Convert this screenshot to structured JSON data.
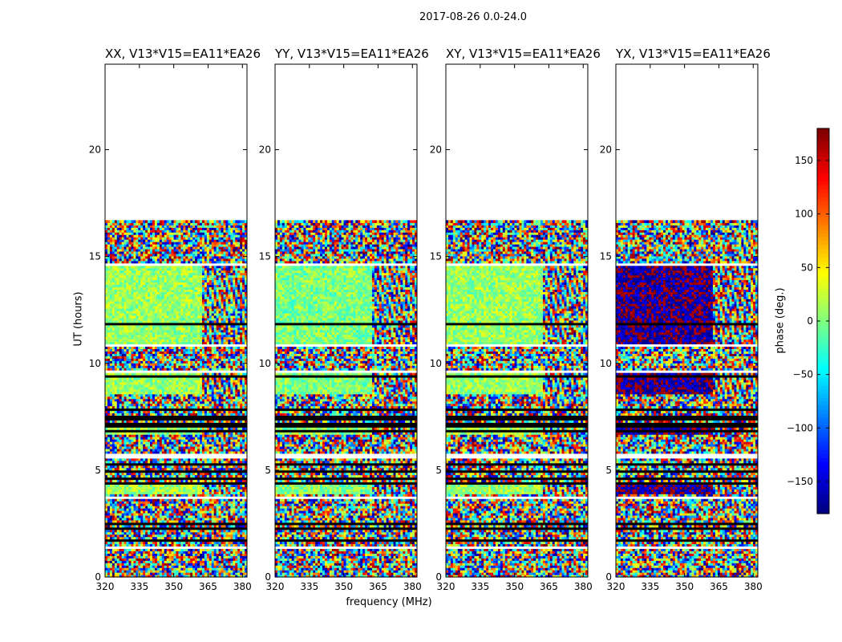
{
  "figure": {
    "suptitle": "2017-08-26 0.0-24.0",
    "xlabel": "frequency (MHz)",
    "ylabel": "UT (hours)",
    "colorbar_label": "phase (deg.)",
    "colorbar_ticks": [
      "150",
      "100",
      "50",
      "0",
      "−50",
      "−100",
      "−150"
    ]
  },
  "chart_data": {
    "type": "heatmap",
    "title": "2017-08-26 0.0-24.0",
    "xlabel": "frequency (MHz)",
    "ylabel": "UT (hours)",
    "xlim": [
      320,
      382
    ],
    "ylim": [
      0,
      24
    ],
    "xticks": [
      320,
      335,
      350,
      365,
      380
    ],
    "yticks": [
      0,
      5,
      10,
      15,
      20
    ],
    "colorbar": {
      "label": "phase (deg.)",
      "range": [
        -180,
        180
      ],
      "ticks": [
        -150,
        -100,
        -50,
        0,
        50,
        100,
        150
      ],
      "colormap": "jet"
    },
    "data_end_hours": 16.7,
    "panels": [
      {
        "title": "XX, V13*V15=EA11*EA26",
        "polarization": "XX",
        "center_phase_deg": 10
      },
      {
        "title": "YY, V13*V15=EA11*EA26",
        "polarization": "YY",
        "center_phase_deg": 0
      },
      {
        "title": "XY, V13*V15=EA11*EA26",
        "polarization": "XY",
        "center_phase_deg": 10
      },
      {
        "title": "YX, V13*V15=EA11*EA26",
        "polarization": "YX",
        "center_phase_deg": -170
      }
    ]
  }
}
